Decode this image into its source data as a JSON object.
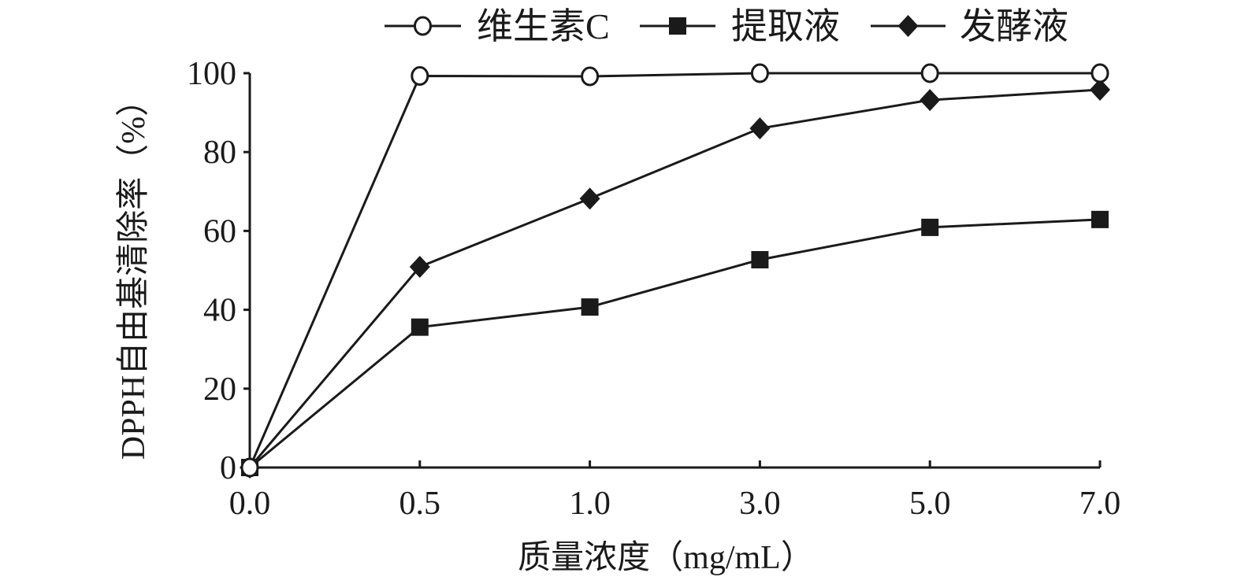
{
  "chart_data": {
    "type": "line",
    "title": "",
    "xlabel": "质量浓度（mg/mL）",
    "ylabel": "DPPH自由基清除率（%）",
    "categories": [
      "0.0",
      "0.5",
      "1.0",
      "3.0",
      "5.0",
      "7.0"
    ],
    "yticks": [
      "0",
      "20",
      "40",
      "60",
      "80",
      "100"
    ],
    "ylim": [
      0,
      100
    ],
    "grid": false,
    "legend_position": "top",
    "series": [
      {
        "name": "维生素C",
        "marker": "open-circle",
        "values": [
          0,
          99.3,
          99.2,
          100,
          100,
          100
        ]
      },
      {
        "name": "提取液",
        "marker": "filled-square",
        "values": [
          0,
          35.6,
          40.7,
          52.7,
          60.9,
          62.9
        ]
      },
      {
        "name": "发酵液",
        "marker": "filled-diamond",
        "values": [
          0,
          50.9,
          68.2,
          86.0,
          93.2,
          95.8
        ]
      }
    ],
    "color": "#1a1a1a"
  }
}
